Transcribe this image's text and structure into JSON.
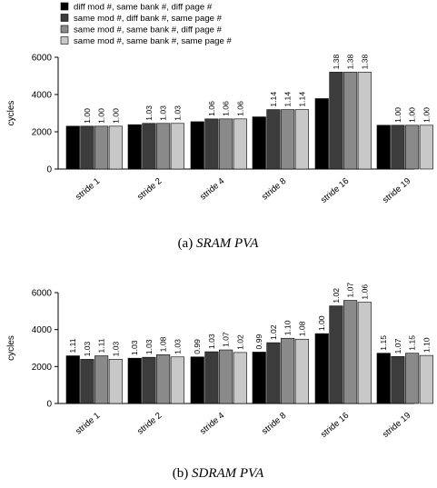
{
  "legend": [
    {
      "label": "diff mod #, same bank #, diff page #",
      "color": "#000000"
    },
    {
      "label": "same mod #, diff bank #, same page #",
      "color": "#3c3c3c"
    },
    {
      "label": "same mod #, same bank #, diff page #",
      "color": "#8a8a8a"
    },
    {
      "label": "same mod #, same bank #, same page #",
      "color": "#c8c8c8"
    }
  ],
  "chart_data": [
    {
      "type": "bar",
      "caption_prefix": "(a) ",
      "caption_italic": "SRAM PVA",
      "ylabel": "cycles",
      "xlabel": "",
      "ylim": [
        0,
        6000
      ],
      "yticks": [
        0,
        2000,
        4000,
        6000
      ],
      "categories": [
        "stride 1",
        "stride 2",
        "stride 4",
        "stride 8",
        "stride 16",
        "stride 19"
      ],
      "series": [
        {
          "name": "diff mod #, same bank #, diff page #",
          "values": [
            2300,
            2380,
            2540,
            2800,
            3780,
            2350
          ],
          "labels": [
            "",
            "",
            "",
            "",
            "",
            ""
          ]
        },
        {
          "name": "same mod #, diff bank #, same page #",
          "values": [
            2300,
            2450,
            2690,
            3190,
            5200,
            2350
          ],
          "labels": [
            "1.00",
            "1.03",
            "1.06",
            "1.14",
            "1.38",
            "1.00"
          ]
        },
        {
          "name": "same mod #, same bank #, diff page #",
          "values": [
            2300,
            2450,
            2690,
            3190,
            5200,
            2350
          ],
          "labels": [
            "1.00",
            "1.03",
            "1.06",
            "1.14",
            "1.38",
            "1.00"
          ]
        },
        {
          "name": "same mod #, same bank #, same page #",
          "values": [
            2300,
            2450,
            2690,
            3190,
            5200,
            2350
          ],
          "labels": [
            "1.00",
            "1.03",
            "1.06",
            "1.14",
            "1.38",
            "1.00"
          ]
        }
      ]
    },
    {
      "type": "bar",
      "caption_prefix": "(b) ",
      "caption_italic": "SDRAM PVA",
      "ylabel": "cycles",
      "xlabel": "",
      "ylim": [
        0,
        6000
      ],
      "yticks": [
        0,
        2000,
        4000,
        6000
      ],
      "categories": [
        "stride 1",
        "stride 2",
        "stride 4",
        "stride 8",
        "stride 16",
        "stride 19"
      ],
      "series": [
        {
          "name": "diff mod #, same bank #, diff page #",
          "values": [
            2580,
            2450,
            2520,
            2780,
            3780,
            2720
          ],
          "labels": [
            "1.11",
            "1.03",
            "0.99",
            "0.99",
            "1.00",
            "1.15"
          ]
        },
        {
          "name": "same mod #, diff bank #, same page #",
          "values": [
            2390,
            2500,
            2800,
            3290,
            5280,
            2540
          ],
          "labels": [
            "1.03",
            "1.03",
            "1.03",
            "1.02",
            "1.02",
            "1.07"
          ]
        },
        {
          "name": "same mod #, same bank #, diff page #",
          "values": [
            2580,
            2640,
            2900,
            3530,
            5580,
            2720
          ],
          "labels": [
            "1.11",
            "1.08",
            "1.07",
            "1.10",
            "1.07",
            "1.15"
          ]
        },
        {
          "name": "same mod #, same bank #, same page #",
          "values": [
            2390,
            2520,
            2760,
            3480,
            5480,
            2600
          ],
          "labels": [
            "1.03",
            "1.03",
            "1.02",
            "1.08",
            "1.06",
            "1.10"
          ]
        }
      ]
    }
  ]
}
